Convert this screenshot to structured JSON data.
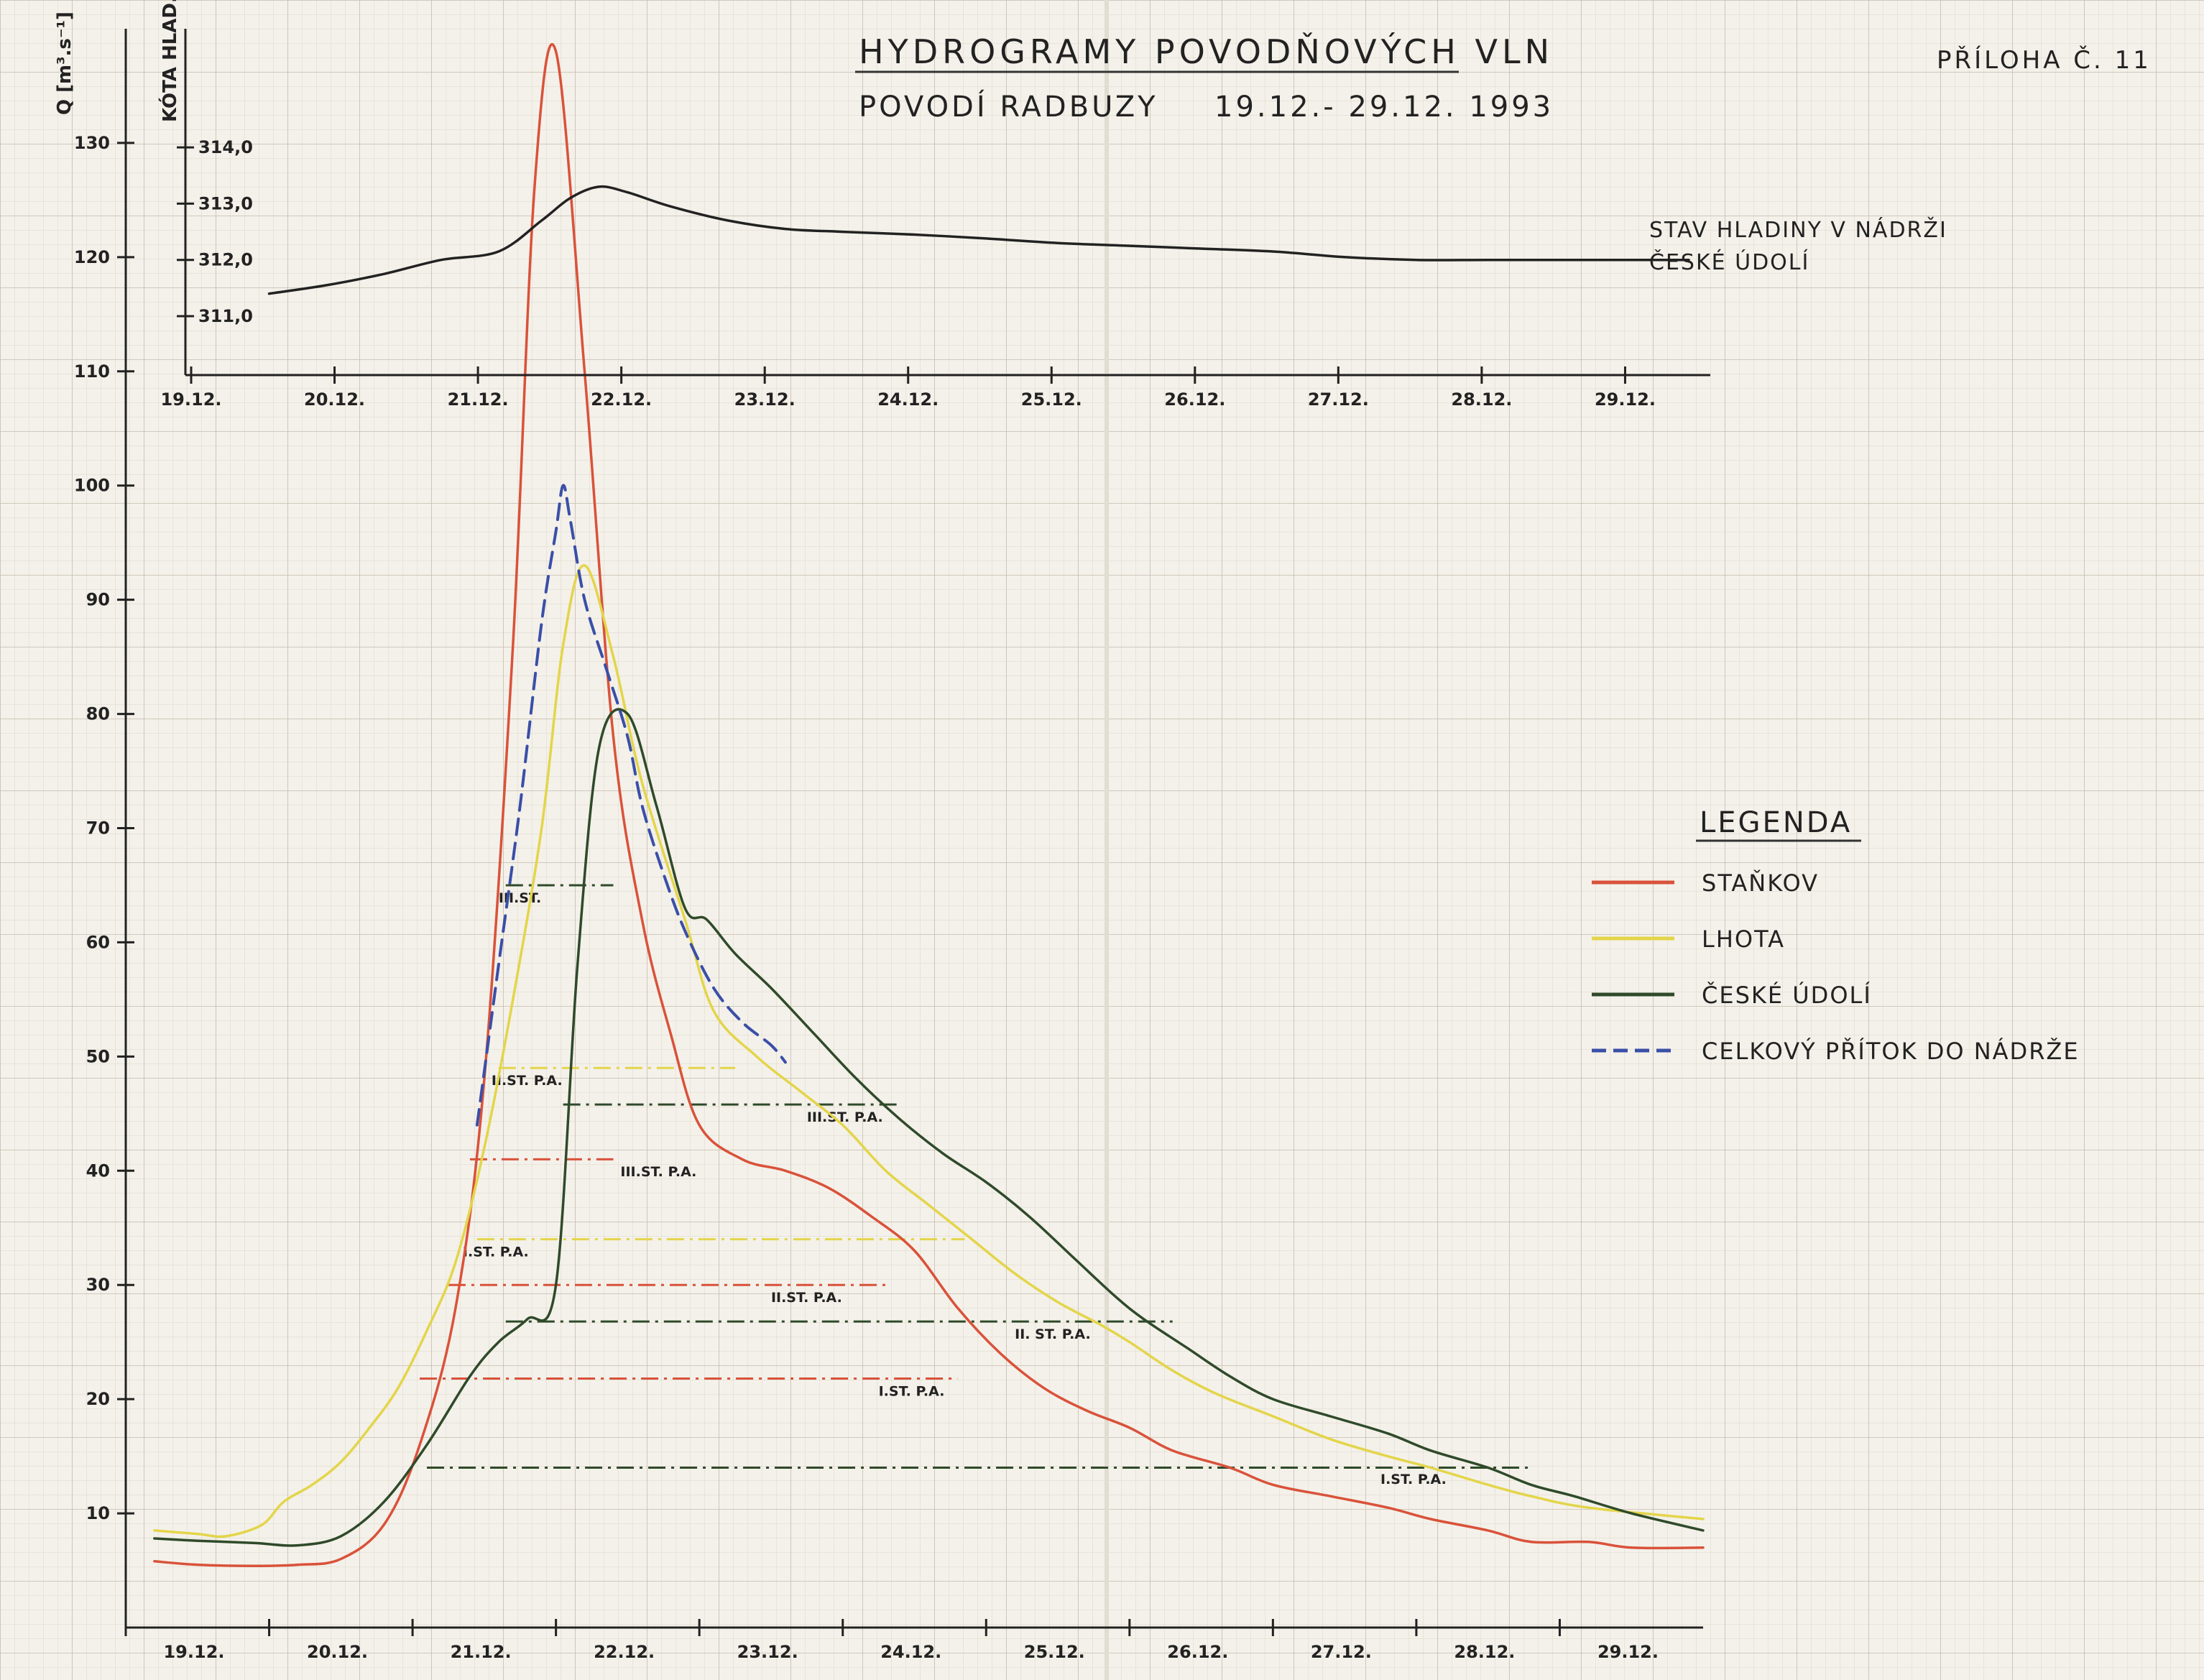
{
  "header": {
    "title": "HYDROGRAMY POVODŇOVÝCH VLN",
    "subtitle": "POVODÍ RADBUZY",
    "date_range": "19.12.- 29.12. 1993",
    "appendix": "PŘÍLOHA Č. 11"
  },
  "chart_data": [
    {
      "type": "line",
      "ylabel": "Q [m³.s⁻¹]",
      "ylim": [
        0,
        140
      ],
      "yticks": [
        "10",
        "20",
        "30",
        "40",
        "50",
        "60",
        "70",
        "80",
        "90",
        "100",
        "110",
        "120",
        "130"
      ],
      "xlim": [
        19.0,
        30.0
      ],
      "xticks": [
        "19.12.",
        "20.12.",
        "21.12.",
        "22.12.",
        "23.12.",
        "24.12.",
        "25.12.",
        "26.12.",
        "27.12.",
        "28.12.",
        "29.12."
      ],
      "grid": true,
      "series": [
        {
          "name": "STAŇKOV",
          "color": "#d9523a",
          "style": "solid",
          "x": [
            19.2,
            19.5,
            19.9,
            20.2,
            20.5,
            20.8,
            21.05,
            21.3,
            21.5,
            21.7,
            21.85,
            22.0,
            22.2,
            22.4,
            22.6,
            22.8,
            23.0,
            23.3,
            23.6,
            23.9,
            24.2,
            24.5,
            24.8,
            25.1,
            25.4,
            25.7,
            26.0,
            26.3,
            26.7,
            27.0,
            27.4,
            27.8,
            28.1,
            28.5,
            28.8,
            29.2,
            29.5,
            30.0
          ],
          "y": [
            5.8,
            5.5,
            5.4,
            5.5,
            6.0,
            9.0,
            16.0,
            28.0,
            48.0,
            86.0,
            126.0,
            138.0,
            110.0,
            78.0,
            62.0,
            52.0,
            44.0,
            41.0,
            40.0,
            38.5,
            36.0,
            33.0,
            28.0,
            24.0,
            21.0,
            19.0,
            17.5,
            15.5,
            14.0,
            12.5,
            11.5,
            10.5,
            9.5,
            8.5,
            7.5,
            7.5,
            7.0,
            7.0
          ]
        },
        {
          "name": "LHOTA",
          "color": "#e3d54a",
          "style": "solid",
          "x": [
            19.2,
            19.5,
            19.7,
            19.95,
            20.1,
            20.3,
            20.5,
            20.7,
            20.9,
            21.1,
            21.3,
            21.5,
            21.7,
            21.9,
            22.05,
            22.2,
            22.4,
            22.6,
            22.9,
            23.1,
            23.4,
            23.7,
            24.0,
            24.3,
            24.6,
            24.9,
            25.2,
            25.5,
            25.8,
            26.0,
            26.3,
            26.6,
            27.0,
            27.4,
            27.8,
            28.1,
            28.5,
            28.8,
            29.2,
            30.0
          ],
          "y": [
            8.5,
            8.2,
            8.0,
            9.0,
            11.0,
            12.5,
            14.5,
            17.5,
            21.0,
            26.0,
            32.0,
            42.0,
            55.0,
            70.0,
            86.0,
            93.0,
            85.0,
            74.0,
            62.0,
            54.0,
            50.0,
            47.0,
            44.0,
            40.0,
            37.0,
            34.0,
            31.0,
            28.5,
            26.5,
            25.0,
            22.5,
            20.5,
            18.5,
            16.5,
            15.0,
            14.0,
            12.5,
            11.5,
            10.5,
            9.5
          ]
        },
        {
          "name": "ČESKÉ ÚDOLÍ",
          "color": "#2f4a2a",
          "style": "solid",
          "x": [
            19.2,
            19.5,
            19.9,
            20.2,
            20.5,
            20.8,
            21.1,
            21.4,
            21.6,
            21.8,
            22.0,
            22.15,
            22.3,
            22.5,
            22.7,
            22.9,
            23.05,
            23.25,
            23.5,
            23.8,
            24.1,
            24.4,
            24.7,
            25.0,
            25.3,
            25.6,
            25.9,
            26.1,
            26.4,
            26.7,
            27.0,
            27.4,
            27.8,
            28.1,
            28.5,
            28.8,
            29.1,
            29.5,
            30.0
          ],
          "y": [
            7.8,
            7.6,
            7.4,
            7.2,
            8.0,
            11.0,
            16.0,
            22.0,
            25.0,
            27.0,
            30.0,
            58.0,
            77.0,
            80.0,
            72.0,
            63.0,
            62.0,
            59.0,
            56.0,
            52.0,
            48.0,
            44.5,
            41.5,
            39.0,
            36.0,
            32.5,
            29.0,
            27.0,
            24.5,
            22.0,
            20.0,
            18.5,
            17.0,
            15.5,
            14.0,
            12.5,
            11.5,
            10.0,
            8.5
          ]
        },
        {
          "name": "CELKOVÝ PŘÍTOK DO NÁDRŽE",
          "color": "#3a4fa8",
          "style": "dashed",
          "x": [
            21.45,
            21.6,
            21.75,
            21.9,
            22.0,
            22.05,
            22.1,
            22.2,
            22.35,
            22.5,
            22.6,
            22.75,
            22.9,
            23.1,
            23.3,
            23.5,
            23.6
          ],
          "y": [
            44.0,
            58.0,
            72.0,
            88.0,
            96.0,
            100.0,
            97.0,
            90.0,
            84.0,
            78.0,
            72.0,
            66.0,
            61.0,
            56.0,
            53.0,
            51.0,
            49.5
          ]
        }
      ],
      "thresholds": [
        {
          "y": 65.0,
          "x1": 21.65,
          "x2": 22.4,
          "color": "#2f4a2a",
          "label": "III.ST.",
          "lx": 21.6,
          "ly": 63.5
        },
        {
          "y": 49.0,
          "x1": 21.6,
          "x2": 23.25,
          "color": "#e3d54a",
          "label": "II.ST. P.A.",
          "lx": 21.55,
          "ly": 47.5
        },
        {
          "y": 45.8,
          "x1": 22.05,
          "x2": 24.4,
          "color": "#2f4a2a",
          "label": "III.ST. P.A.",
          "lx": 23.75,
          "ly": 44.3
        },
        {
          "y": 41.0,
          "x1": 21.4,
          "x2": 22.4,
          "color": "#d9523a",
          "label": "III.ST. P.A.",
          "lx": 22.45,
          "ly": 39.5
        },
        {
          "y": 34.0,
          "x1": 21.45,
          "x2": 24.85,
          "color": "#e3d54a",
          "label": "I.ST. P.A.",
          "lx": 21.35,
          "ly": 32.5
        },
        {
          "y": 30.0,
          "x1": 21.25,
          "x2": 24.3,
          "color": "#d9523a",
          "label": "II.ST. P.A.",
          "lx": 23.5,
          "ly": 28.5
        },
        {
          "y": 26.8,
          "x1": 21.65,
          "x2": 26.3,
          "color": "#2f4a2a",
          "label": "II. ST. P.A.",
          "lx": 25.2,
          "ly": 25.3
        },
        {
          "y": 21.8,
          "x1": 21.05,
          "x2": 24.8,
          "color": "#d9523a",
          "label": "I.ST. P.A.",
          "lx": 24.25,
          "ly": 20.3
        },
        {
          "y": 14.0,
          "x1": 21.1,
          "x2": 28.8,
          "color": "#2f4a2a",
          "label": "I.ST. P.A.",
          "lx": 27.75,
          "ly": 12.6
        }
      ],
      "legend": {
        "title": "LEGENDA",
        "position": "right",
        "items": [
          "STAŇKOV",
          "LHOTA",
          "ČESKÉ ÚDOLÍ",
          "CELKOVÝ PŘÍTOK DO NÁDRŽE"
        ]
      }
    },
    {
      "type": "line",
      "ylabel": "KÓTA HLAD. [m.n.m.]",
      "ylim": [
        310.5,
        314.0
      ],
      "yticks": [
        "311,0",
        "312,0",
        "313,0",
        "314,0"
      ],
      "xlim": [
        19.0,
        30.0
      ],
      "xticks": [
        "19.12.",
        "20.12.",
        "21.12.",
        "22.12.",
        "23.12.",
        "24.12.",
        "25.12.",
        "26.12.",
        "27.12.",
        "28.12.",
        "29.12."
      ],
      "series": [
        {
          "name": "STAV HLADINY V NÁDRŽI ČESKÉ ÚDOLÍ",
          "color": "#222222",
          "x": [
            20.0,
            20.4,
            20.8,
            21.2,
            21.6,
            21.9,
            22.1,
            22.3,
            22.5,
            22.8,
            23.2,
            23.6,
            24.0,
            24.5,
            25.0,
            25.5,
            26.0,
            26.5,
            27.0,
            27.5,
            28.0,
            28.5,
            29.0,
            29.5,
            29.9
          ],
          "y": [
            311.4,
            311.55,
            311.75,
            312.0,
            312.15,
            312.7,
            313.1,
            313.3,
            313.2,
            312.95,
            312.7,
            312.55,
            312.5,
            312.45,
            312.38,
            312.3,
            312.25,
            312.2,
            312.15,
            312.05,
            312.0,
            312.0,
            312.0,
            312.0,
            312.0
          ],
          "label_lines": [
            "STAV HLADINY V NÁDRŽI",
            "ČESKÉ ÚDOLÍ"
          ]
        }
      ]
    }
  ]
}
